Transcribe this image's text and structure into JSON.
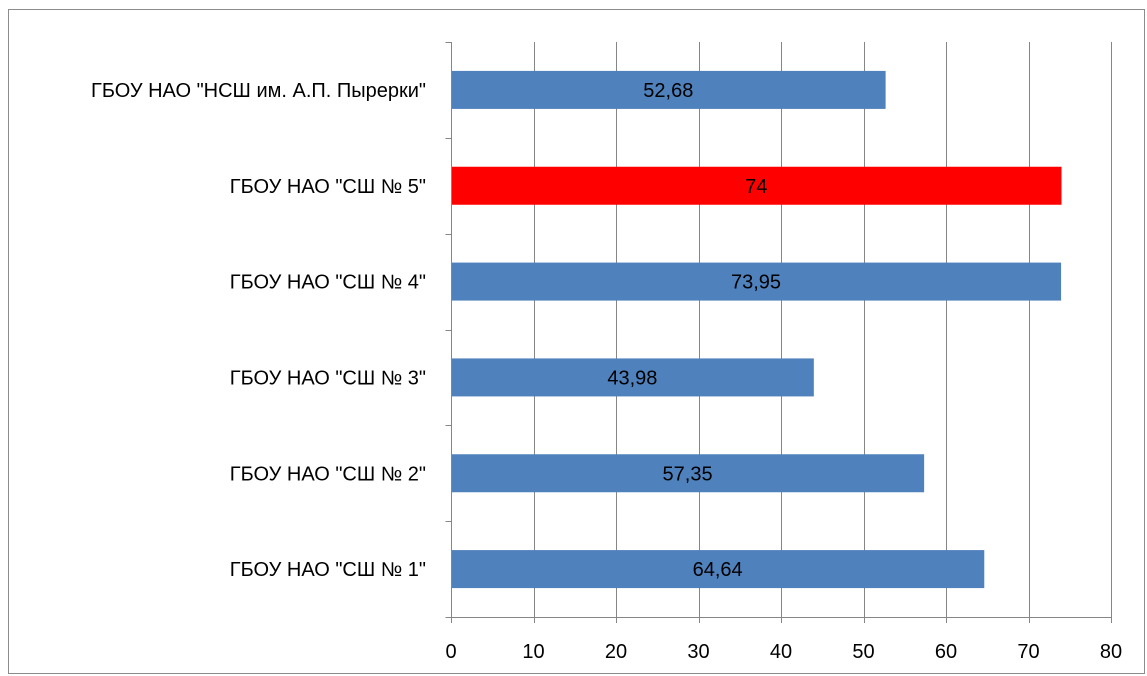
{
  "chart_data": {
    "type": "bar",
    "orientation": "horizontal",
    "categories": [
      "ГБОУ НАО \"СШ № 1\"",
      "ГБОУ НАО \"СШ № 2\"",
      "ГБОУ НАО \"СШ № 3\"",
      "ГБОУ НАО \"СШ № 4\"",
      "ГБОУ НАО \"СШ № 5\"",
      "ГБОУ НАО \"НСШ им. А.П. Пырерки\""
    ],
    "values": [
      64.64,
      57.35,
      43.98,
      73.95,
      74,
      52.68
    ],
    "data_labels": [
      "64,64",
      "57,35",
      "43,98",
      "73,95",
      "74",
      "52,68"
    ],
    "bar_colors": [
      "#4f81bd",
      "#4f81bd",
      "#4f81bd",
      "#4f81bd",
      "#ff0000",
      "#4f81bd"
    ],
    "xlim": [
      0,
      80
    ],
    "x_ticks": [
      0,
      10,
      20,
      30,
      40,
      50,
      60,
      70,
      80
    ],
    "x_tick_labels": [
      "0",
      "10",
      "20",
      "30",
      "40",
      "50",
      "60",
      "70",
      "80"
    ],
    "grid": "vertical",
    "gridline_color": "#868686",
    "legend": "none",
    "title": "",
    "xlabel": "",
    "ylabel": ""
  }
}
